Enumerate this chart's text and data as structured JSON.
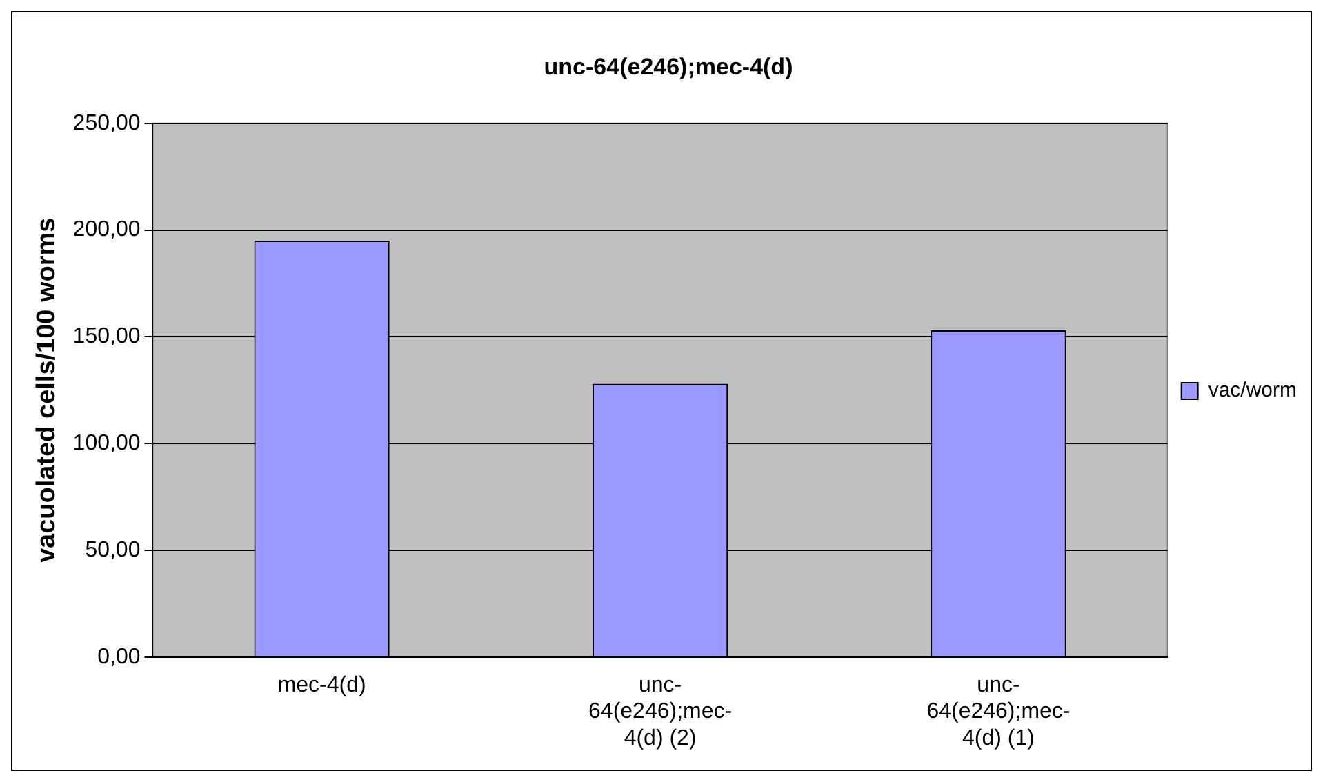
{
  "chart_data": {
    "type": "bar",
    "title": "unc-64(e246);mec-4(d)",
    "ylabel": "vacuolated cells/100 worms",
    "categories": [
      "mec-4(d)",
      "unc-64(e246);mec-4(d) (2)",
      "unc-64(e246);mec-4(d) (1)"
    ],
    "series": [
      {
        "name": "vac/worm",
        "color": "#9999ff",
        "values": [
          195,
          128,
          153
        ]
      }
    ],
    "ylim": [
      0,
      250
    ],
    "yticks": [
      {
        "value": 0,
        "label": "0,00"
      },
      {
        "value": 50,
        "label": "50,00"
      },
      {
        "value": 100,
        "label": "100,00"
      },
      {
        "value": 150,
        "label": "150,00"
      },
      {
        "value": 200,
        "label": "200,00"
      },
      {
        "value": 250,
        "label": "250,00"
      }
    ],
    "grid": "y",
    "legend": "right"
  }
}
